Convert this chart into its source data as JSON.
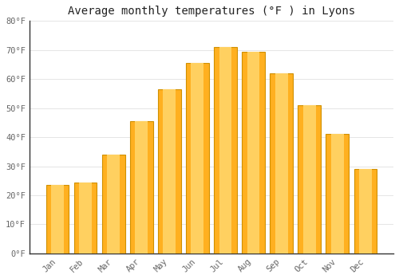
{
  "title": "Average monthly temperatures (°F ) in Lyons",
  "months": [
    "Jan",
    "Feb",
    "Mar",
    "Apr",
    "May",
    "Jun",
    "Jul",
    "Aug",
    "Sep",
    "Oct",
    "Nov",
    "Dec"
  ],
  "values": [
    23.5,
    24.5,
    34,
    45.5,
    56.5,
    65.5,
    71,
    69.5,
    62,
    51,
    41,
    29
  ],
  "bar_color_center": "#FFB733",
  "bar_color_edge": "#F0A000",
  "background_color": "#ffffff",
  "plot_bg_color": "#ffffff",
  "ylim": [
    0,
    80
  ],
  "yticks": [
    0,
    10,
    20,
    30,
    40,
    50,
    60,
    70,
    80
  ],
  "ytick_labels": [
    "0°F",
    "10°F",
    "20°F",
    "30°F",
    "40°F",
    "50°F",
    "60°F",
    "70°F",
    "80°F"
  ],
  "title_fontsize": 10,
  "tick_fontsize": 7.5,
  "grid_color": "#e0e0e0",
  "bar_width": 0.82,
  "spine_color": "#333333",
  "tick_color": "#666666"
}
